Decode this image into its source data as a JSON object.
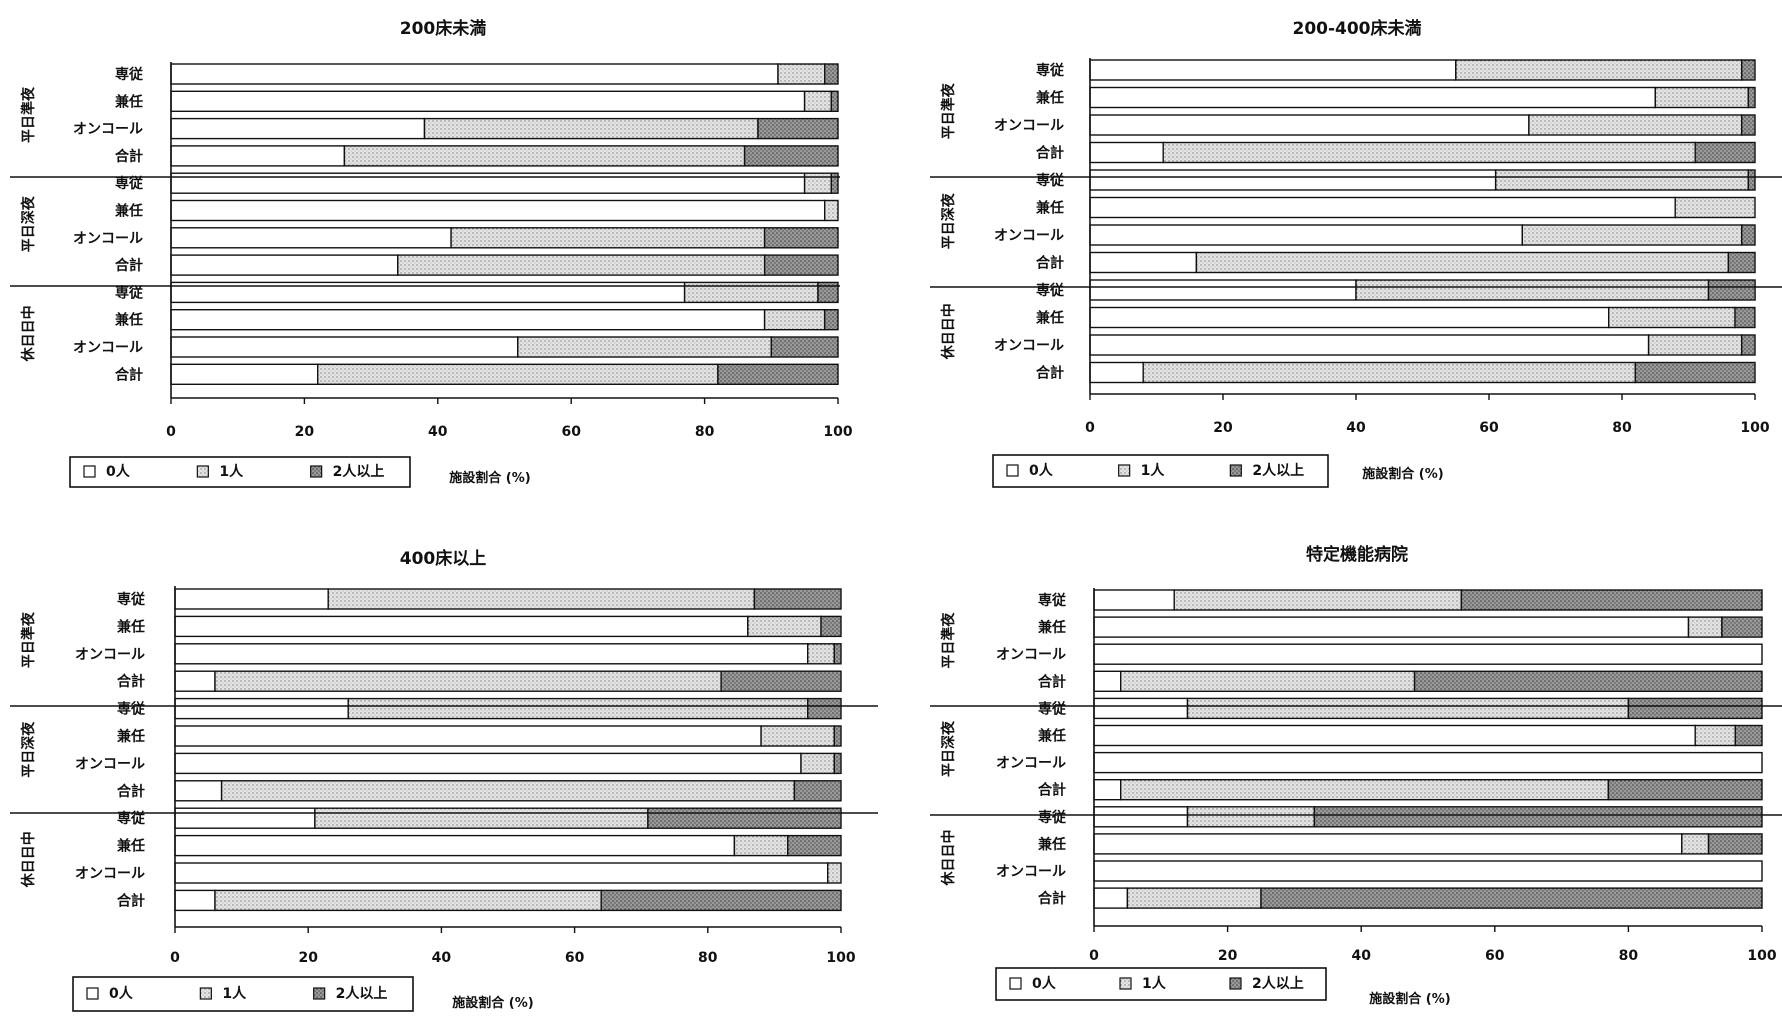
{
  "legend_labels": [
    "0人",
    "1人",
    "2人以上"
  ],
  "colors": {
    "zero": "#ffffff",
    "one": "#d9d9d9",
    "two": "#8f8f8f",
    "stroke": "#111111"
  },
  "chart_data": [
    {
      "type": "bar",
      "title": "200床未満",
      "xlabel": "施設割合 (%)",
      "xlim": [
        0,
        100
      ],
      "xticks": [
        "0",
        "20",
        "40",
        "60",
        "80",
        "100"
      ],
      "groups": [
        "平日準夜",
        "平日深夜",
        "休日日中"
      ],
      "categories": [
        "専従",
        "兼任",
        "オンコール",
        "合計"
      ],
      "stacked": true,
      "series": [
        {
          "name": "0人",
          "values": [
            [
              91,
              95,
              38,
              26
            ],
            [
              95,
              98,
              42,
              34
            ],
            [
              77,
              89,
              52,
              22
            ]
          ]
        },
        {
          "name": "1人",
          "values": [
            [
              7,
              4,
              50,
              60
            ],
            [
              4,
              2,
              47,
              55
            ],
            [
              20,
              9,
              38,
              60
            ]
          ]
        },
        {
          "name": "2人以上",
          "values": [
            [
              2,
              1,
              12,
              14
            ],
            [
              1,
              0,
              11,
              11
            ],
            [
              3,
              2,
              10,
              18
            ]
          ]
        }
      ]
    },
    {
      "type": "bar",
      "title": "200-400床未満",
      "xlabel": "施設割合 (%)",
      "xlim": [
        0,
        100
      ],
      "xticks": [
        "0",
        "20",
        "40",
        "60",
        "80",
        "100"
      ],
      "groups": [
        "平日準夜",
        "平日深夜",
        "休日日中"
      ],
      "categories": [
        "専従",
        "兼任",
        "オンコール",
        "合計"
      ],
      "stacked": true,
      "series": [
        {
          "name": "0人",
          "values": [
            [
              55,
              85,
              66,
              11
            ],
            [
              61,
              88,
              65,
              16
            ],
            [
              40,
              78,
              84,
              8
            ]
          ]
        },
        {
          "name": "1人",
          "values": [
            [
              43,
              14,
              32,
              80
            ],
            [
              38,
              12,
              33,
              80
            ],
            [
              53,
              19,
              14,
              74
            ]
          ]
        },
        {
          "name": "2人以上",
          "values": [
            [
              2,
              1,
              2,
              9
            ],
            [
              1,
              0,
              2,
              4
            ],
            [
              7,
              3,
              2,
              18
            ]
          ]
        }
      ]
    },
    {
      "type": "bar",
      "title": "400床以上",
      "xlabel": "施設割合 (%)",
      "xlim": [
        0,
        100
      ],
      "xticks": [
        "0",
        "20",
        "40",
        "60",
        "80",
        "100"
      ],
      "groups": [
        "平日準夜",
        "平日深夜",
        "休日日中"
      ],
      "categories": [
        "専従",
        "兼任",
        "オンコール",
        "合計"
      ],
      "stacked": true,
      "series": [
        {
          "name": "0人",
          "values": [
            [
              23,
              86,
              95,
              6
            ],
            [
              26,
              88,
              94,
              7
            ],
            [
              21,
              84,
              98,
              6
            ]
          ]
        },
        {
          "name": "1人",
          "values": [
            [
              64,
              11,
              4,
              76
            ],
            [
              69,
              11,
              5,
              86
            ],
            [
              50,
              8,
              2,
              58
            ]
          ]
        },
        {
          "name": "2人以上",
          "values": [
            [
              13,
              3,
              1,
              18
            ],
            [
              5,
              1,
              1,
              7
            ],
            [
              29,
              8,
              0,
              36
            ]
          ]
        }
      ]
    },
    {
      "type": "bar",
      "title": "特定機能病院",
      "xlabel": "施設割合 (%)",
      "xlim": [
        0,
        100
      ],
      "xticks": [
        "0",
        "20",
        "40",
        "60",
        "80",
        "100"
      ],
      "groups": [
        "平日準夜",
        "平日深夜",
        "休日日中"
      ],
      "categories": [
        "専従",
        "兼任",
        "オンコール",
        "合計"
      ],
      "stacked": true,
      "series": [
        {
          "name": "0人",
          "values": [
            [
              12,
              89,
              100,
              4
            ],
            [
              14,
              90,
              100,
              4
            ],
            [
              14,
              88,
              100,
              5
            ]
          ]
        },
        {
          "name": "1人",
          "values": [
            [
              43,
              5,
              0,
              44
            ],
            [
              66,
              6,
              0,
              73
            ],
            [
              19,
              4,
              0,
              20
            ]
          ]
        },
        {
          "name": "2人以上",
          "values": [
            [
              45,
              6,
              0,
              52
            ],
            [
              20,
              4,
              0,
              23
            ],
            [
              67,
              8,
              0,
              75
            ]
          ]
        }
      ]
    }
  ]
}
